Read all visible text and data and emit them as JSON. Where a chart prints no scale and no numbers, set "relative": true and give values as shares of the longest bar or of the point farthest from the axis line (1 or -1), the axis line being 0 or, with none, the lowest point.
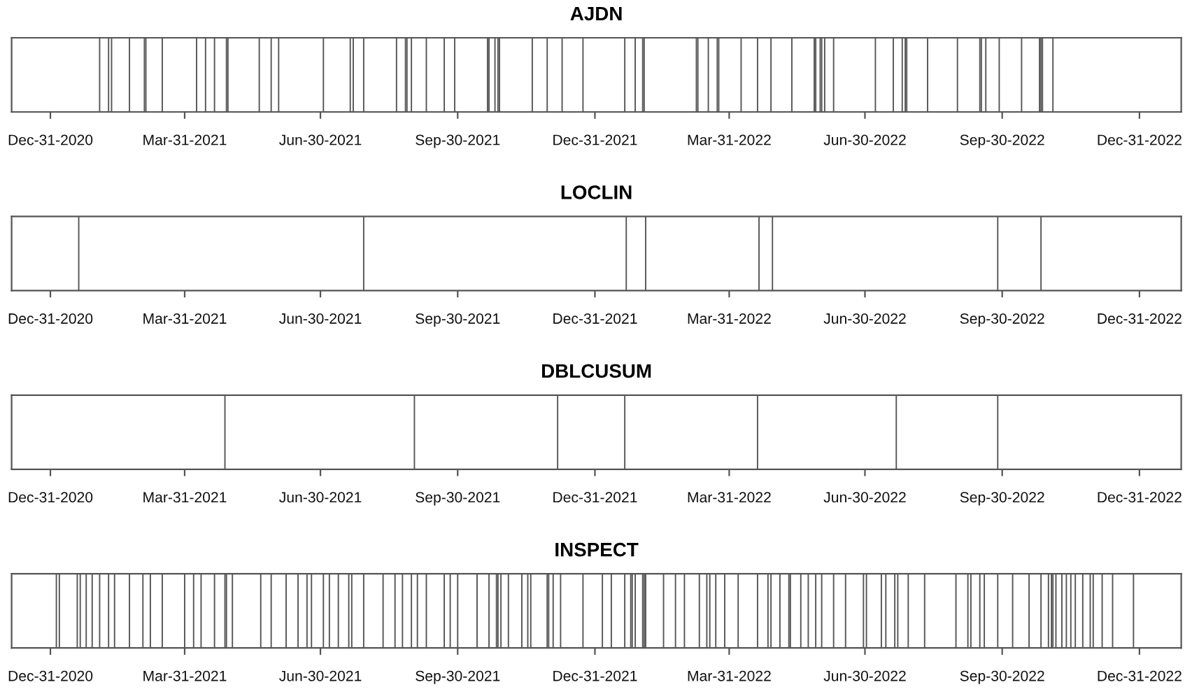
{
  "chart_data": [
    {
      "type": "bar",
      "title": "AJDN",
      "relative": true,
      "color": "#555555",
      "xlim": [
        "2020-12-05",
        "2023-01-28"
      ],
      "xticks": [
        {
          "value": "2020-12-31",
          "label": "Dec-31-2020"
        },
        {
          "value": "2021-03-31",
          "label": "Mar-31-2021"
        },
        {
          "value": "2021-06-30",
          "label": "Jun-30-2021"
        },
        {
          "value": "2021-09-30",
          "label": "Sep-30-2021"
        },
        {
          "value": "2021-12-31",
          "label": "Dec-31-2021"
        },
        {
          "value": "2022-03-31",
          "label": "Mar-31-2022"
        },
        {
          "value": "2022-06-30",
          "label": "Jun-30-2022"
        },
        {
          "value": "2022-09-30",
          "label": "Sep-30-2022"
        },
        {
          "value": "2022-12-31",
          "label": "Dec-31-2022"
        }
      ],
      "x": [
        "2021-02-02",
        "2021-02-08",
        "2021-02-10",
        "2021-02-22",
        "2021-03-04",
        "2021-03-05",
        "2021-03-16",
        "2021-04-08",
        "2021-04-14",
        "2021-04-20",
        "2021-04-28",
        "2021-04-29",
        "2021-05-20",
        "2021-05-28",
        "2021-06-02",
        "2021-07-02",
        "2021-07-20",
        "2021-07-22",
        "2021-07-29",
        "2021-08-20",
        "2021-08-26",
        "2021-08-27",
        "2021-08-30",
        "2021-09-09",
        "2021-09-21",
        "2021-09-28",
        "2021-10-20",
        "2021-10-21",
        "2021-10-25",
        "2021-10-27",
        "2021-10-28",
        "2021-11-19",
        "2021-11-29",
        "2021-12-09",
        "2021-12-23",
        "2022-01-20",
        "2022-01-27",
        "2022-02-01",
        "2022-02-02",
        "2022-03-09",
        "2022-03-10",
        "2022-03-17",
        "2022-03-23",
        "2022-03-24",
        "2022-04-08",
        "2022-04-19",
        "2022-04-28",
        "2022-05-12",
        "2022-05-27",
        "2022-05-28",
        "2022-05-31",
        "2022-06-01",
        "2022-06-03",
        "2022-06-09",
        "2022-07-07",
        "2022-07-19",
        "2022-07-25",
        "2022-07-27",
        "2022-07-28",
        "2022-08-11",
        "2022-08-31",
        "2022-09-15",
        "2022-09-16",
        "2022-09-19",
        "2022-09-28",
        "2022-10-13",
        "2022-10-25",
        "2022-10-26",
        "2022-10-27",
        "2022-11-03"
      ],
      "values": [
        1,
        1,
        1,
        1,
        1,
        1,
        1,
        1,
        1,
        1,
        1,
        1,
        1,
        1,
        1,
        1,
        1,
        1,
        1,
        1,
        1,
        1,
        1,
        1,
        1,
        1,
        1,
        1,
        1,
        1,
        1,
        1,
        1,
        1,
        1,
        1,
        1,
        1,
        1,
        1,
        1,
        1,
        1,
        1,
        1,
        1,
        1,
        1,
        1,
        1,
        1,
        1,
        1,
        1,
        1,
        1,
        1,
        1,
        1,
        1,
        1,
        1,
        1,
        1,
        1,
        1,
        1,
        1,
        1,
        1
      ]
    },
    {
      "type": "bar",
      "title": "LOCLIN",
      "relative": true,
      "color": "#555555",
      "xlim": [
        "2020-12-05",
        "2023-01-28"
      ],
      "xticks": [
        {
          "value": "2020-12-31",
          "label": "Dec-31-2020"
        },
        {
          "value": "2021-03-31",
          "label": "Mar-31-2021"
        },
        {
          "value": "2021-06-30",
          "label": "Jun-30-2021"
        },
        {
          "value": "2021-09-30",
          "label": "Sep-30-2021"
        },
        {
          "value": "2021-12-31",
          "label": "Dec-31-2021"
        },
        {
          "value": "2022-03-31",
          "label": "Mar-31-2022"
        },
        {
          "value": "2022-06-30",
          "label": "Jun-30-2022"
        },
        {
          "value": "2022-09-30",
          "label": "Sep-30-2022"
        },
        {
          "value": "2022-12-31",
          "label": "Dec-31-2022"
        }
      ],
      "x": [
        "2021-01-19",
        "2021-07-29",
        "2022-01-21",
        "2022-02-03",
        "2022-04-20",
        "2022-04-29",
        "2022-09-27",
        "2022-10-26"
      ],
      "values": [
        1,
        1,
        1,
        1,
        1,
        1,
        1,
        1
      ]
    },
    {
      "type": "bar",
      "title": "DBLCUSUM",
      "relative": true,
      "color": "#555555",
      "xlim": [
        "2020-12-05",
        "2023-01-28"
      ],
      "xticks": [
        {
          "value": "2020-12-31",
          "label": "Dec-31-2020"
        },
        {
          "value": "2021-03-31",
          "label": "Mar-31-2021"
        },
        {
          "value": "2021-06-30",
          "label": "Jun-30-2021"
        },
        {
          "value": "2021-09-30",
          "label": "Sep-30-2021"
        },
        {
          "value": "2021-12-31",
          "label": "Dec-31-2021"
        },
        {
          "value": "2022-03-31",
          "label": "Mar-31-2022"
        },
        {
          "value": "2022-06-30",
          "label": "Jun-30-2022"
        },
        {
          "value": "2022-09-30",
          "label": "Sep-30-2022"
        },
        {
          "value": "2022-12-31",
          "label": "Dec-31-2022"
        }
      ],
      "x": [
        "2021-04-27",
        "2021-09-01",
        "2021-12-06",
        "2022-01-20",
        "2022-04-19",
        "2022-07-21",
        "2022-09-27"
      ],
      "values": [
        1,
        1,
        1,
        1,
        1,
        1,
        1
      ]
    },
    {
      "type": "bar",
      "title": "INSPECT",
      "relative": true,
      "color": "#555555",
      "xlim": [
        "2020-12-05",
        "2023-01-28"
      ],
      "xticks": [
        {
          "value": "2020-12-31",
          "label": "Dec-31-2020"
        },
        {
          "value": "2021-03-31",
          "label": "Mar-31-2021"
        },
        {
          "value": "2021-06-30",
          "label": "Jun-30-2021"
        },
        {
          "value": "2021-09-30",
          "label": "Sep-30-2021"
        },
        {
          "value": "2021-12-31",
          "label": "Dec-31-2021"
        },
        {
          "value": "2022-03-31",
          "label": "Mar-31-2022"
        },
        {
          "value": "2022-06-30",
          "label": "Jun-30-2022"
        },
        {
          "value": "2022-09-30",
          "label": "Sep-30-2022"
        },
        {
          "value": "2022-12-31",
          "label": "Dec-31-2022"
        }
      ],
      "x": [
        "2021-01-04",
        "2021-01-06",
        "2021-01-18",
        "2021-01-20",
        "2021-01-24",
        "2021-01-28",
        "2021-02-02",
        "2021-02-08",
        "2021-02-12",
        "2021-02-22",
        "2021-03-03",
        "2021-03-08",
        "2021-03-16",
        "2021-03-31",
        "2021-04-06",
        "2021-04-11",
        "2021-04-20",
        "2021-04-27",
        "2021-04-28",
        "2021-05-02",
        "2021-05-21",
        "2021-05-28",
        "2021-06-07",
        "2021-06-15",
        "2021-06-21",
        "2021-06-24",
        "2021-07-02",
        "2021-07-06",
        "2021-07-12",
        "2021-07-19",
        "2021-07-21",
        "2021-07-29",
        "2021-08-11",
        "2021-08-19",
        "2021-08-24",
        "2021-08-30",
        "2021-09-03",
        "2021-09-09",
        "2021-09-21",
        "2021-09-25",
        "2021-09-30",
        "2021-10-13",
        "2021-10-21",
        "2021-10-26",
        "2021-10-27",
        "2021-10-29",
        "2021-11-03",
        "2021-11-12",
        "2021-11-16",
        "2021-11-18",
        "2021-11-29",
        "2021-11-30",
        "2021-12-03",
        "2021-12-08",
        "2021-12-23",
        "2022-01-05",
        "2022-01-11",
        "2022-01-20",
        "2022-01-24",
        "2022-01-25",
        "2022-01-27",
        "2022-02-01",
        "2022-02-02",
        "2022-02-03",
        "2022-02-15",
        "2022-02-23",
        "2022-03-01",
        "2022-03-11",
        "2022-03-16",
        "2022-03-18",
        "2022-03-22",
        "2022-03-28",
        "2022-04-06",
        "2022-04-19",
        "2022-04-26",
        "2022-04-28",
        "2022-05-04",
        "2022-05-10",
        "2022-05-11",
        "2022-05-18",
        "2022-05-23",
        "2022-05-28",
        "2022-06-01",
        "2022-06-09",
        "2022-06-17",
        "2022-06-29",
        "2022-07-01",
        "2022-07-11",
        "2022-07-14",
        "2022-07-20",
        "2022-07-22",
        "2022-07-29",
        "2022-08-09",
        "2022-08-30",
        "2022-09-07",
        "2022-09-09",
        "2022-09-15",
        "2022-09-18",
        "2022-09-27",
        "2022-10-07",
        "2022-10-18",
        "2022-10-26",
        "2022-10-31",
        "2022-11-02",
        "2022-11-03",
        "2022-11-05",
        "2022-11-09",
        "2022-11-12",
        "2022-11-15",
        "2022-11-18",
        "2022-11-23",
        "2022-11-28",
        "2022-11-30",
        "2022-12-06",
        "2022-12-13",
        "2022-12-27"
      ],
      "values": [
        1,
        1,
        1,
        1,
        1,
        1,
        1,
        1,
        1,
        1,
        1,
        1,
        1,
        1,
        1,
        1,
        1,
        1,
        1,
        1,
        1,
        1,
        1,
        1,
        1,
        1,
        1,
        1,
        1,
        1,
        1,
        1,
        1,
        1,
        1,
        1,
        1,
        1,
        1,
        1,
        1,
        1,
        1,
        1,
        1,
        1,
        1,
        1,
        1,
        1,
        1,
        1,
        1,
        1,
        1,
        1,
        1,
        1,
        1,
        1,
        1,
        1,
        1,
        1,
        1,
        1,
        1,
        1,
        1,
        1,
        1,
        1,
        1,
        1,
        1,
        1,
        1,
        1,
        1,
        1,
        1,
        1,
        1,
        1,
        1,
        1,
        1,
        1,
        1,
        1,
        1,
        1,
        1,
        1,
        1,
        1,
        1,
        1,
        1,
        1,
        1,
        1,
        1,
        1,
        1,
        1,
        1,
        1,
        1,
        1,
        1,
        1,
        1,
        1,
        1,
        1
      ]
    }
  ]
}
